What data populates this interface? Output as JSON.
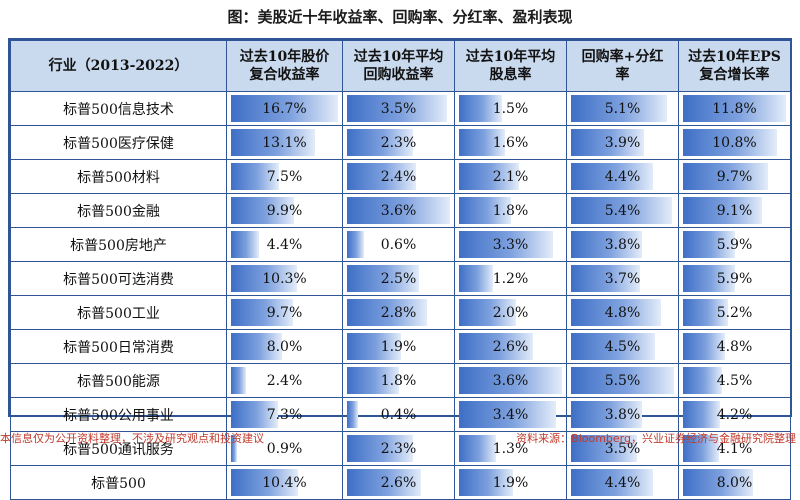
{
  "title": "图：美股近十年收益率、回购率、分红率、盈利表现",
  "headers": {
    "sector": "行业（2013-2022）",
    "col1_line1": "过去10年股价",
    "col1_line2": "复合收益率",
    "col2_line1": "过去10年平均",
    "col2_line2": "回购收益率",
    "col3_line1": "过去10年平均",
    "col3_line2": "股息率",
    "col4_line1": "回购率+分红",
    "col4_line2": "率",
    "col5_line1": "过去10年EPS",
    "col5_line2": "复合增长率"
  },
  "rows": [
    {
      "label": "标普500信息技术",
      "v": [
        "16.7%",
        "3.5%",
        "1.5%",
        "5.1%",
        "11.8%"
      ]
    },
    {
      "label": "标普500医疗保健",
      "v": [
        "13.1%",
        "2.3%",
        "1.6%",
        "3.9%",
        "10.8%"
      ]
    },
    {
      "label": "标普500材料",
      "v": [
        "7.5%",
        "2.4%",
        "2.1%",
        "4.4%",
        "9.7%"
      ]
    },
    {
      "label": "标普500金融",
      "v": [
        "9.9%",
        "3.6%",
        "1.8%",
        "5.4%",
        "9.1%"
      ]
    },
    {
      "label": "标普500房地产",
      "v": [
        "4.4%",
        "0.6%",
        "3.3%",
        "3.8%",
        "5.9%"
      ]
    },
    {
      "label": "标普500可选消费",
      "v": [
        "10.3%",
        "2.5%",
        "1.2%",
        "3.7%",
        "5.9%"
      ]
    },
    {
      "label": "标普500工业",
      "v": [
        "9.7%",
        "2.8%",
        "2.0%",
        "4.8%",
        "5.2%"
      ]
    },
    {
      "label": "标普500日常消费",
      "v": [
        "8.0%",
        "1.9%",
        "2.6%",
        "4.5%",
        "4.8%"
      ]
    },
    {
      "label": "标普500能源",
      "v": [
        "2.4%",
        "1.8%",
        "3.6%",
        "5.5%",
        "4.5%"
      ]
    },
    {
      "label": "标普500公用事业",
      "v": [
        "7.3%",
        "0.4%",
        "3.4%",
        "3.8%",
        "4.2%"
      ]
    },
    {
      "label": "标普500通讯服务",
      "v": [
        "0.9%",
        "2.3%",
        "1.3%",
        "3.5%",
        "4.1%"
      ]
    },
    {
      "label": "标普500",
      "v": [
        "10.4%",
        "2.6%",
        "1.9%",
        "4.4%",
        "8.0%"
      ]
    }
  ],
  "footer_left": "本信息仅为公开资料整理，不涉及研究观点和投资建议",
  "footer_right": "资料来源：Bloomberg，兴业证券经济与金融研究院整理",
  "colors": {
    "header_bg": "#c9d9ee",
    "border": "#2f5597",
    "bar": "#3e6fc6",
    "footer": "#c0392b"
  }
}
